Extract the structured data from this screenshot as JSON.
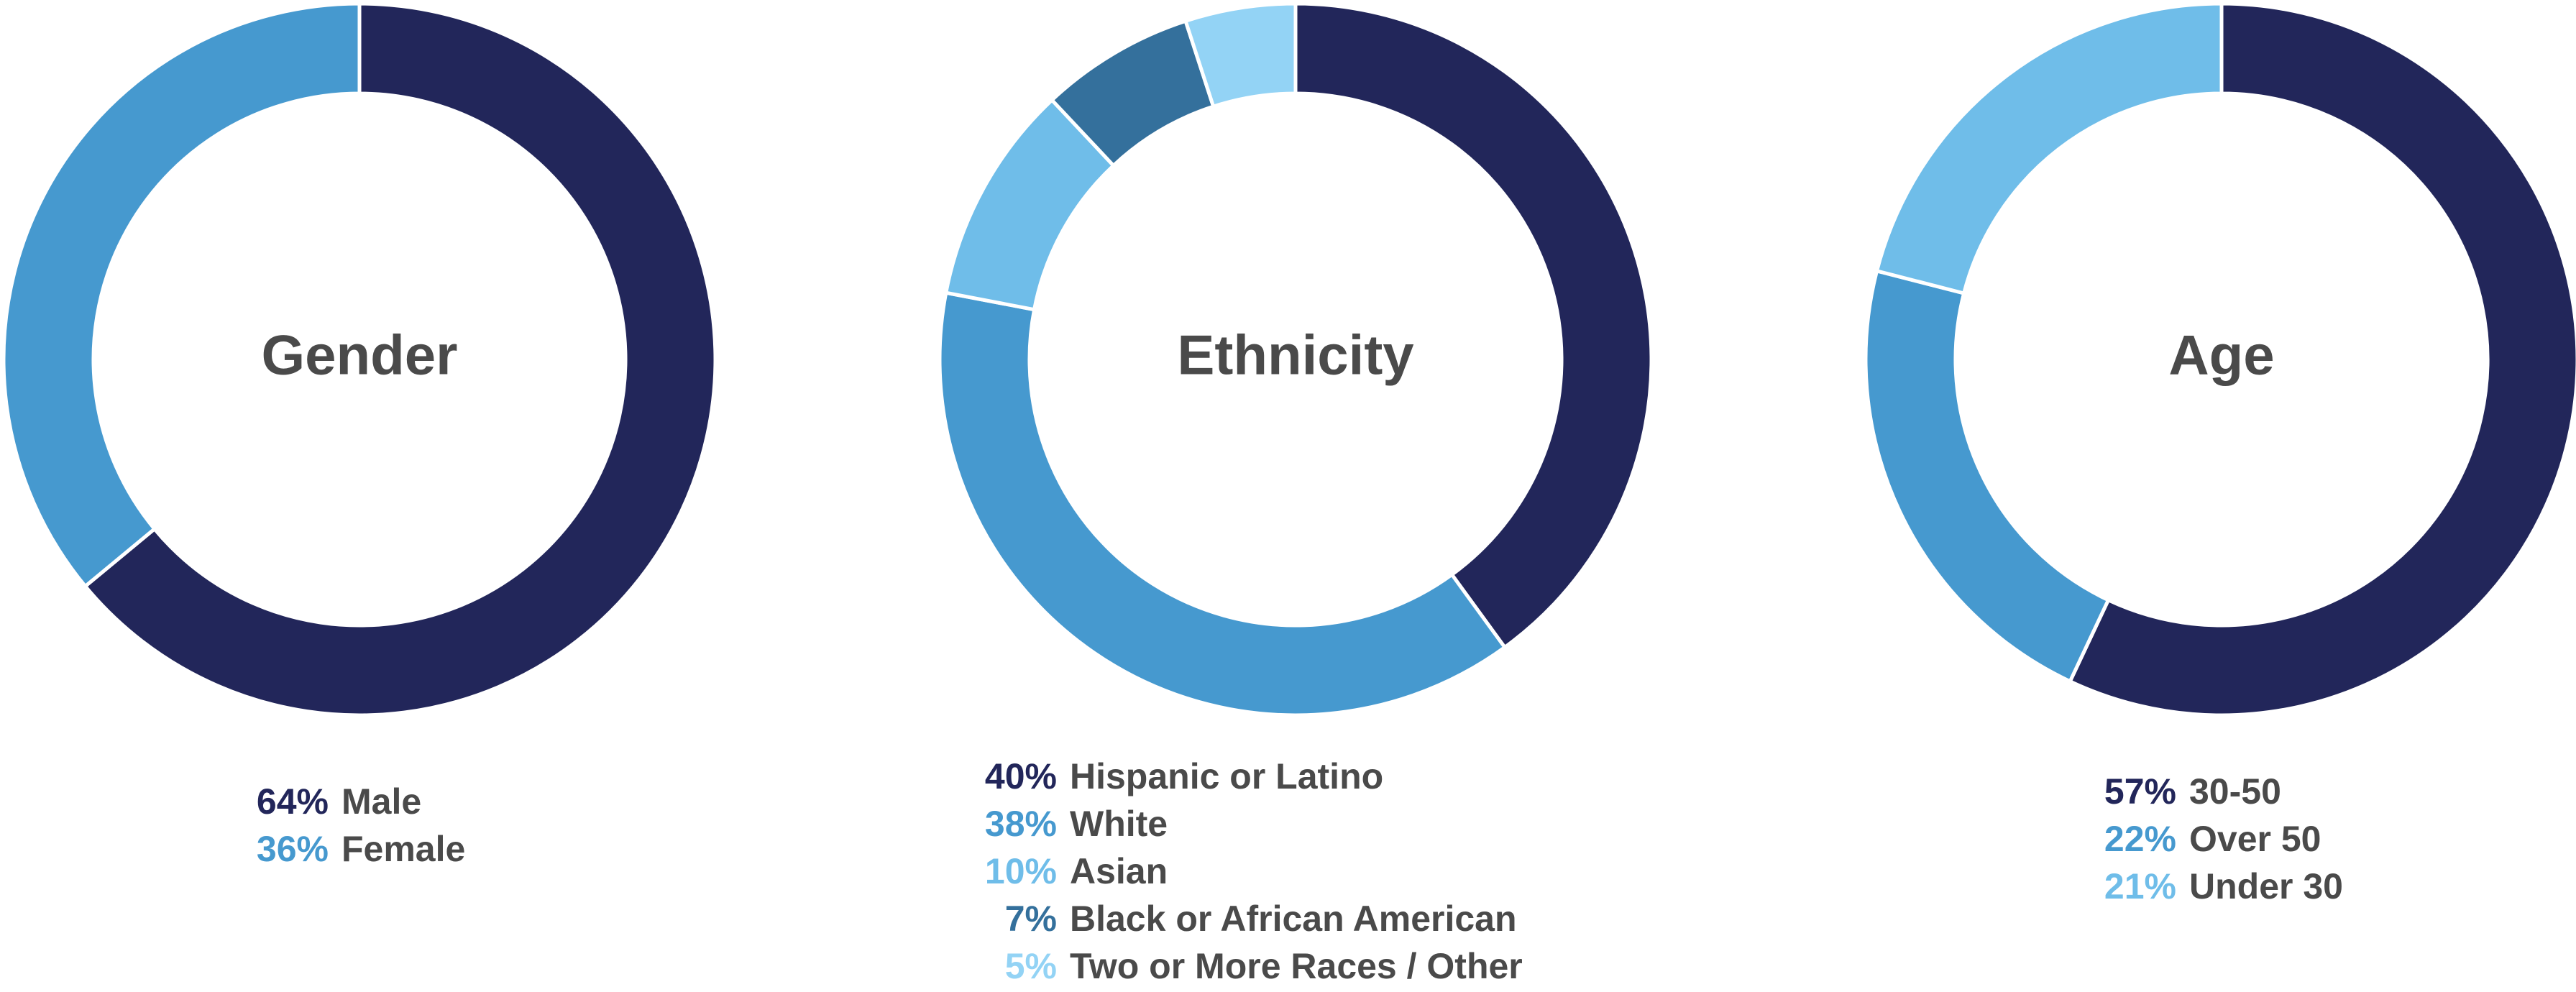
{
  "chart_data": [
    {
      "type": "pie",
      "title": "Gender",
      "categories": [
        "Male",
        "Female"
      ],
      "values": [
        64,
        36
      ],
      "value_labels": [
        "64%",
        "36%"
      ],
      "colors": [
        "#22265a",
        "#4699cf"
      ]
    },
    {
      "type": "pie",
      "title": "Ethnicity",
      "categories": [
        "Hispanic or Latino",
        "White",
        "Asian",
        "Black or African American",
        "Two or More Races / Other"
      ],
      "values": [
        40,
        38,
        10,
        7,
        5
      ],
      "value_labels": [
        "40%",
        "38%",
        "10%",
        "7%",
        "5%"
      ],
      "colors": [
        "#22265a",
        "#4699cf",
        "#6fbde9",
        "#34709c",
        "#93d3f5"
      ]
    },
    {
      "type": "pie",
      "title": "Age",
      "categories": [
        "30-50",
        "Over 50",
        "Under 30"
      ],
      "values": [
        57,
        22,
        21
      ],
      "value_labels": [
        "57%",
        "22%",
        "21%"
      ],
      "colors": [
        "#22265a",
        "#4699cf",
        "#6fbde9"
      ]
    }
  ]
}
